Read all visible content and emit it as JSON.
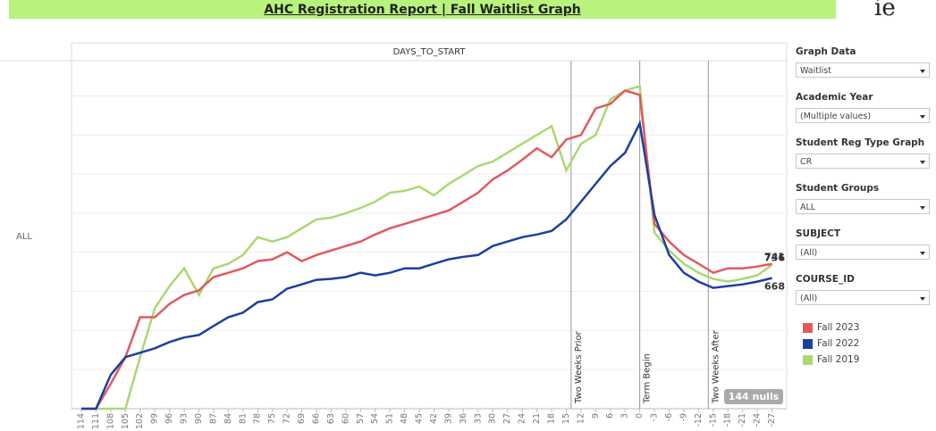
{
  "header": {
    "title": "AHC Registration Report | Fall Waitlist Graph",
    "logo": "ie"
  },
  "chart_data": {
    "type": "line",
    "title": "DAYS_TO_START",
    "row_label": "ALL",
    "x": [
      114,
      111,
      108,
      105,
      102,
      99,
      96,
      93,
      90,
      87,
      84,
      81,
      78,
      75,
      72,
      69,
      66,
      63,
      60,
      57,
      54,
      51,
      48,
      45,
      42,
      39,
      36,
      33,
      30,
      27,
      24,
      21,
      18,
      15,
      12,
      9,
      6,
      3,
      0,
      -3,
      -6,
      -9,
      -12,
      -15,
      -18,
      -21,
      -24,
      -27
    ],
    "xlim": [
      116,
      -30
    ],
    "xticks": [
      114,
      111,
      108,
      105,
      102,
      99,
      96,
      93,
      90,
      87,
      84,
      81,
      78,
      75,
      72,
      69,
      66,
      63,
      60,
      57,
      54,
      51,
      48,
      45,
      42,
      39,
      36,
      33,
      30,
      27,
      24,
      21,
      18,
      15,
      12,
      9,
      6,
      3,
      0,
      -3,
      -6,
      -9,
      -12,
      -15,
      -18,
      -21,
      -24,
      -27
    ],
    "ylim": [
      0,
      1780
    ],
    "yticks": [
      0,
      200,
      400,
      600,
      800,
      1000,
      1200,
      1400,
      1600
    ],
    "grid": true,
    "series": [
      {
        "name": "Fall 2023",
        "color": "#e05a5f",
        "values": [
          0,
          0,
          127,
          264,
          468,
          468,
          536,
          582,
          605,
          673,
          695,
          718,
          755,
          764,
          800,
          755,
          786,
          809,
          832,
          855,
          891,
          923,
          945,
          968,
          991,
          1014,
          1059,
          1105,
          1173,
          1218,
          1273,
          1332,
          1286,
          1377,
          1400,
          1536,
          1559,
          1627,
          1605,
          945,
          855,
          786,
          741,
          695,
          718,
          718,
          727,
          741
        ]
      },
      {
        "name": "Fall 2022",
        "color": "#1c3f9e",
        "values": [
          0,
          0,
          173,
          264,
          286,
          309,
          341,
          364,
          377,
          423,
          468,
          491,
          545,
          559,
          614,
          636,
          659,
          664,
          673,
          695,
          682,
          695,
          718,
          718,
          741,
          764,
          777,
          786,
          832,
          855,
          877,
          891,
          909,
          968,
          1059,
          1150,
          1241,
          1309,
          1459,
          991,
          786,
          695,
          650,
          618,
          627,
          636,
          650,
          668
        ]
      },
      {
        "name": "Fall 2019",
        "color": "#a9d971",
        "values": [
          0,
          0,
          0,
          0,
          264,
          514,
          627,
          718,
          582,
          718,
          741,
          786,
          877,
          855,
          877,
          923,
          968,
          977,
          1000,
          1027,
          1059,
          1105,
          1114,
          1136,
          1091,
          1150,
          1195,
          1241,
          1264,
          1309,
          1355,
          1400,
          1445,
          1218,
          1355,
          1400,
          1582,
          1627,
          1650,
          900,
          809,
          741,
          695,
          664,
          650,
          664,
          682,
          736
        ]
      }
    ],
    "reference_lines": [
      {
        "value": 14,
        "label": "Two Weeks Prior"
      },
      {
        "value": 0,
        "label": "Term Begin"
      },
      {
        "value": -14,
        "label": "Two Weeks After"
      }
    ],
    "null_note": "144 nulls"
  },
  "filters": [
    {
      "label": "Graph Data",
      "value": "Waitlist"
    },
    {
      "label": "Academic Year",
      "value": "(Multiple values)"
    },
    {
      "label": "Student Reg Type Graph",
      "value": "CR"
    },
    {
      "label": "Student Groups",
      "value": "ALL"
    },
    {
      "label": "SUBJECT",
      "value": "(All)"
    },
    {
      "label": "COURSE_ID",
      "value": "(All)"
    }
  ]
}
